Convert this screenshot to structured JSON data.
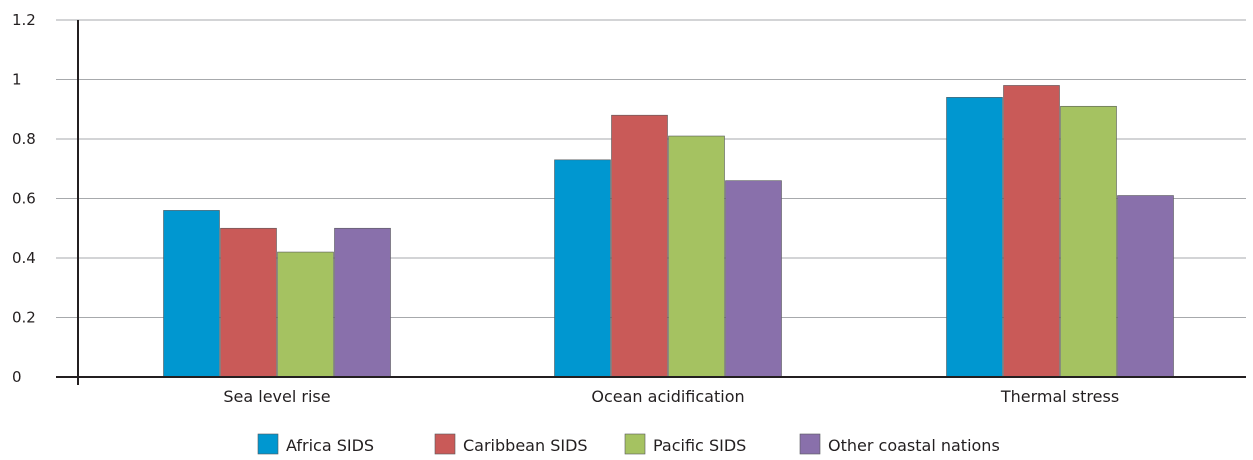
{
  "chart_data": {
    "type": "bar",
    "title": "",
    "xlabel": "",
    "ylabel": "",
    "ylim": [
      0,
      1.2
    ],
    "yticks": [
      "0",
      "0.2",
      "0.4",
      "0.6",
      "0.8",
      "1",
      "1.2"
    ],
    "ytick_values": [
      0,
      0.2,
      0.4,
      0.6,
      0.8,
      1,
      1.2
    ],
    "grid": true,
    "legend_position": "bottom",
    "categories": [
      "Sea level rise",
      "Ocean acidification",
      "Thermal stress"
    ],
    "series": [
      {
        "name": "Africa SIDS",
        "color": "#0097d0",
        "values": [
          0.56,
          0.73,
          0.94
        ]
      },
      {
        "name": "Caribbean SIDS",
        "color": "#c95a58",
        "values": [
          0.5,
          0.88,
          0.98
        ]
      },
      {
        "name": "Pacific SIDS",
        "color": "#a5c261",
        "values": [
          0.42,
          0.81,
          0.91
        ]
      },
      {
        "name": "Other coastal nations",
        "color": "#8970ab",
        "values": [
          0.5,
          0.66,
          0.61
        ]
      }
    ]
  }
}
